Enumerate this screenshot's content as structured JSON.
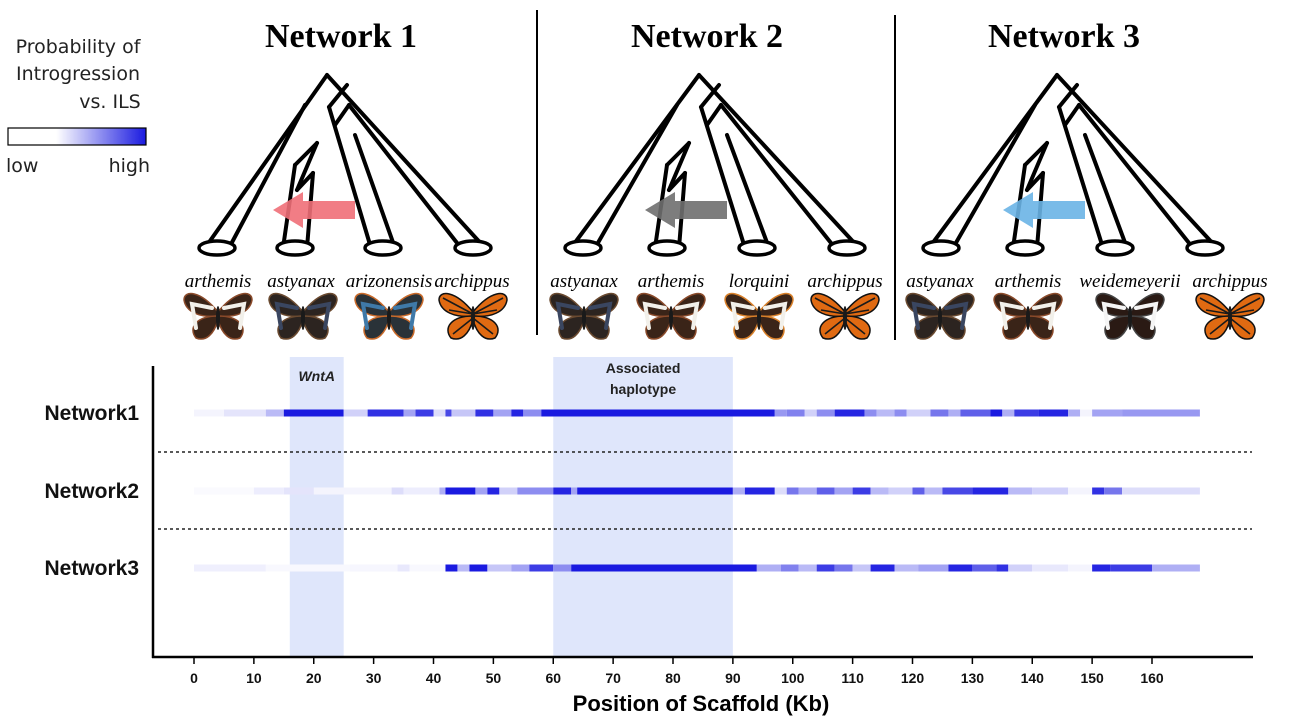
{
  "legend": {
    "title_lines": [
      "Probability of",
      "Introgression",
      "vs. ILS"
    ],
    "low": "low",
    "high": "high",
    "color_low": "#ffffff",
    "color_high": "#1a1ae0"
  },
  "networks": [
    {
      "title": "Network 1",
      "species": [
        "arthemis",
        "astyanax",
        "arizonensis",
        "archippus"
      ],
      "arrow_color": "#ef6f78",
      "butterflies": [
        "white-band",
        "dark-blue",
        "spotted-blue",
        "monarch"
      ]
    },
    {
      "title": "Network 2",
      "species": [
        "astyanax",
        "arthemis",
        "lorquini",
        "archippus"
      ],
      "arrow_color": "#6f6f6f",
      "butterflies": [
        "dark-blue",
        "white-band",
        "orange-tip",
        "monarch"
      ]
    },
    {
      "title": "Network 3",
      "species": [
        "astyanax",
        "arthemis",
        "weidemeyerii",
        "archippus"
      ],
      "arrow_color": "#6ab4e6",
      "butterflies": [
        "dark-blue",
        "white-band",
        "white-band-spotted",
        "monarch"
      ]
    }
  ],
  "chart_data": {
    "type": "heatmap",
    "xlabel": "Position of Scaffold (Kb)",
    "x_ticks": [
      0,
      10,
      20,
      30,
      40,
      50,
      60,
      70,
      80,
      90,
      100,
      110,
      120,
      130,
      140,
      150,
      160
    ],
    "xlim": [
      -2,
      175
    ],
    "regions": [
      {
        "label": "WntA",
        "italic": true,
        "start": 16,
        "end": 25
      },
      {
        "label": "Associated\nhaplotype",
        "italic": false,
        "start": 60,
        "end": 90
      }
    ],
    "rows": [
      {
        "name": "Network1",
        "segments": [
          [
            0,
            5,
            0.05
          ],
          [
            5,
            12,
            0.12
          ],
          [
            12,
            15,
            0.3
          ],
          [
            15,
            25,
            1.0
          ],
          [
            25,
            29,
            0.2
          ],
          [
            29,
            35,
            0.9
          ],
          [
            35,
            37,
            0.4
          ],
          [
            37,
            40,
            0.85
          ],
          [
            40,
            42,
            0.15
          ],
          [
            42,
            43,
            0.8
          ],
          [
            43,
            47,
            0.25
          ],
          [
            47,
            50,
            0.9
          ],
          [
            50,
            53,
            0.4
          ],
          [
            53,
            55,
            0.95
          ],
          [
            55,
            58,
            0.5
          ],
          [
            58,
            97,
            1.0
          ],
          [
            97,
            99,
            0.45
          ],
          [
            99,
            102,
            0.55
          ],
          [
            102,
            104,
            0.2
          ],
          [
            104,
            107,
            0.5
          ],
          [
            107,
            112,
            0.95
          ],
          [
            112,
            114,
            0.5
          ],
          [
            114,
            117,
            0.3
          ],
          [
            117,
            119,
            0.5
          ],
          [
            119,
            123,
            0.2
          ],
          [
            123,
            126,
            0.6
          ],
          [
            126,
            128,
            0.35
          ],
          [
            128,
            133,
            0.7
          ],
          [
            133,
            135,
            1.0
          ],
          [
            135,
            137,
            0.35
          ],
          [
            137,
            141,
            0.85
          ],
          [
            141,
            146,
            0.95
          ],
          [
            146,
            148,
            0.35
          ],
          [
            148,
            150,
            0.05
          ],
          [
            150,
            155,
            0.4
          ],
          [
            155,
            168,
            0.45
          ]
        ]
      },
      {
        "name": "Network2",
        "segments": [
          [
            0,
            10,
            0.02
          ],
          [
            10,
            15,
            0.08
          ],
          [
            15,
            20,
            0.12
          ],
          [
            20,
            33,
            0.05
          ],
          [
            33,
            35,
            0.15
          ],
          [
            35,
            41,
            0.08
          ],
          [
            41,
            42,
            0.35
          ],
          [
            42,
            47,
            1.0
          ],
          [
            47,
            49,
            0.4
          ],
          [
            49,
            51,
            0.95
          ],
          [
            51,
            54,
            0.2
          ],
          [
            54,
            60,
            0.5
          ],
          [
            60,
            63,
            0.95
          ],
          [
            63,
            64,
            0.4
          ],
          [
            64,
            90,
            1.0
          ],
          [
            90,
            92,
            0.35
          ],
          [
            92,
            97,
            0.95
          ],
          [
            97,
            99,
            0.15
          ],
          [
            99,
            101,
            0.6
          ],
          [
            101,
            104,
            0.35
          ],
          [
            104,
            107,
            0.7
          ],
          [
            107,
            110,
            0.4
          ],
          [
            110,
            113,
            0.85
          ],
          [
            113,
            116,
            0.3
          ],
          [
            116,
            120,
            0.2
          ],
          [
            120,
            122,
            0.7
          ],
          [
            122,
            125,
            0.3
          ],
          [
            125,
            130,
            0.8
          ],
          [
            130,
            136,
            0.95
          ],
          [
            136,
            140,
            0.3
          ],
          [
            140,
            146,
            0.2
          ],
          [
            146,
            150,
            0.05
          ],
          [
            150,
            152,
            0.9
          ],
          [
            152,
            155,
            0.6
          ],
          [
            155,
            160,
            0.15
          ],
          [
            160,
            168,
            0.15
          ]
        ]
      },
      {
        "name": "Network3",
        "segments": [
          [
            0,
            12,
            0.07
          ],
          [
            12,
            26,
            0.03
          ],
          [
            26,
            34,
            0.04
          ],
          [
            34,
            36,
            0.1
          ],
          [
            36,
            42,
            0.03
          ],
          [
            42,
            44,
            1.0
          ],
          [
            44,
            46,
            0.3
          ],
          [
            46,
            49,
            1.0
          ],
          [
            49,
            53,
            0.25
          ],
          [
            53,
            56,
            0.4
          ],
          [
            56,
            60,
            0.85
          ],
          [
            60,
            63,
            0.5
          ],
          [
            63,
            94,
            1.0
          ],
          [
            94,
            98,
            0.35
          ],
          [
            98,
            101,
            0.55
          ],
          [
            101,
            104,
            0.3
          ],
          [
            104,
            107,
            0.85
          ],
          [
            107,
            110,
            0.6
          ],
          [
            110,
            113,
            0.25
          ],
          [
            113,
            117,
            0.95
          ],
          [
            117,
            121,
            0.3
          ],
          [
            121,
            126,
            0.4
          ],
          [
            126,
            130,
            0.95
          ],
          [
            130,
            134,
            0.7
          ],
          [
            134,
            136,
            0.9
          ],
          [
            136,
            140,
            0.2
          ],
          [
            140,
            146,
            0.1
          ],
          [
            146,
            150,
            0.05
          ],
          [
            150,
            153,
            0.95
          ],
          [
            153,
            160,
            0.85
          ],
          [
            160,
            168,
            0.35
          ]
        ]
      }
    ]
  }
}
